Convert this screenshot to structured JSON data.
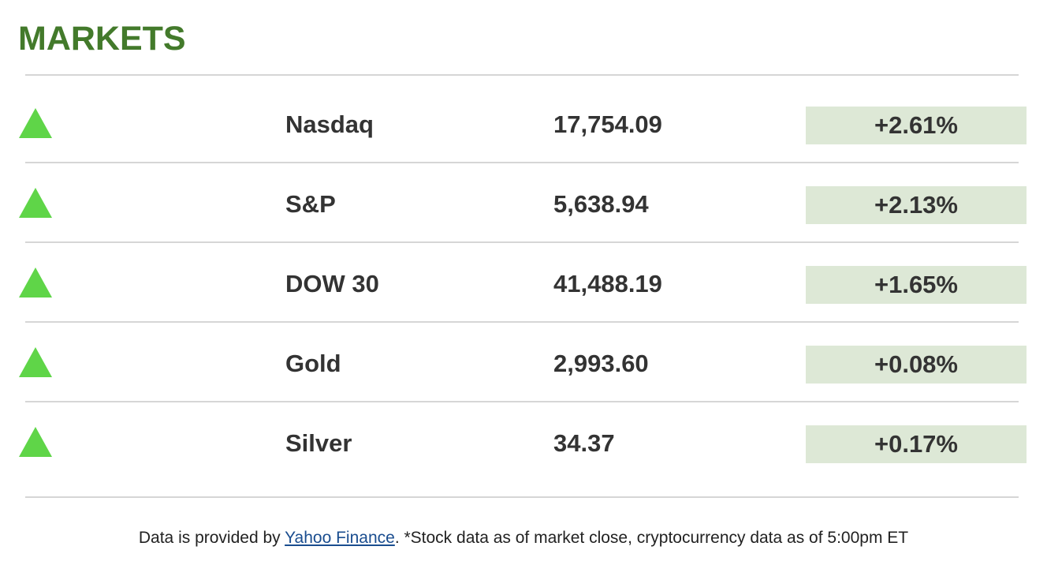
{
  "header": {
    "title": "MARKETS"
  },
  "markets": [
    {
      "name": "Nasdaq",
      "value": "17,754.09",
      "change": "+2.61%",
      "direction": "up"
    },
    {
      "name": "S&P",
      "value": "5,638.94",
      "change": "+2.13%",
      "direction": "up"
    },
    {
      "name": "DOW 30",
      "value": "41,488.19",
      "change": "+1.65%",
      "direction": "up"
    },
    {
      "name": "Gold",
      "value": "2,993.60",
      "change": "+0.08%",
      "direction": "up"
    },
    {
      "name": "Silver",
      "value": "34.37",
      "change": "+0.17%",
      "direction": "up"
    }
  ],
  "footer": {
    "prefix": "Data is provided by ",
    "link_text": "Yahoo Finance",
    "suffix": ". *Stock data as of market close, cryptocurrency data as of 5:00pm ET"
  },
  "colors": {
    "title": "#437a2b",
    "up_arrow": "#5fd548",
    "change_background": "#dde8d6",
    "link": "#1a4d8f"
  },
  "icons": {
    "up": "triangle-up-icon"
  }
}
